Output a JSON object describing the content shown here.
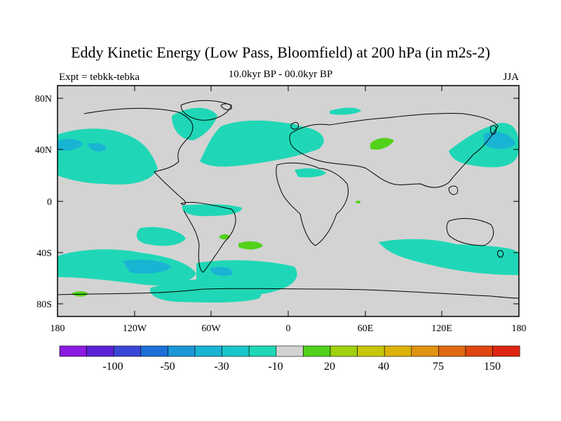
{
  "title": "Eddy Kinetic Energy (Low Pass, Bloomfield) at 200 hPa (in m2s-2)",
  "left_label": "Expt = tebkk-tebka",
  "center_label": "10.0kyr BP - 00.0kyr BP",
  "right_label": "JJA",
  "lat_ticks": [
    "80N",
    "40N",
    "0",
    "40S",
    "80S"
  ],
  "lon_ticks": [
    "180",
    "120W",
    "60W",
    "0",
    "60E",
    "120E",
    "180"
  ],
  "colorbar": {
    "colors": [
      "#8c1ae0",
      "#5b22d8",
      "#3a47d6",
      "#1d6fd6",
      "#1b97d8",
      "#19b3d4",
      "#17c6cc",
      "#1fd7b6",
      "#d3d3d3",
      "#52d11a",
      "#9fd10d",
      "#c8c706",
      "#dcb20a",
      "#e09210",
      "#df6a12",
      "#e0460f",
      "#dd2512"
    ],
    "labels": [
      "-100",
      "-50",
      "-30",
      "-10",
      "20",
      "40",
      "75",
      "150"
    ]
  },
  "field_colors": {
    "background": "#d3d3d3",
    "cyan": "#1fd7b6",
    "blue": "#19b3d4",
    "green": "#52d11a"
  }
}
